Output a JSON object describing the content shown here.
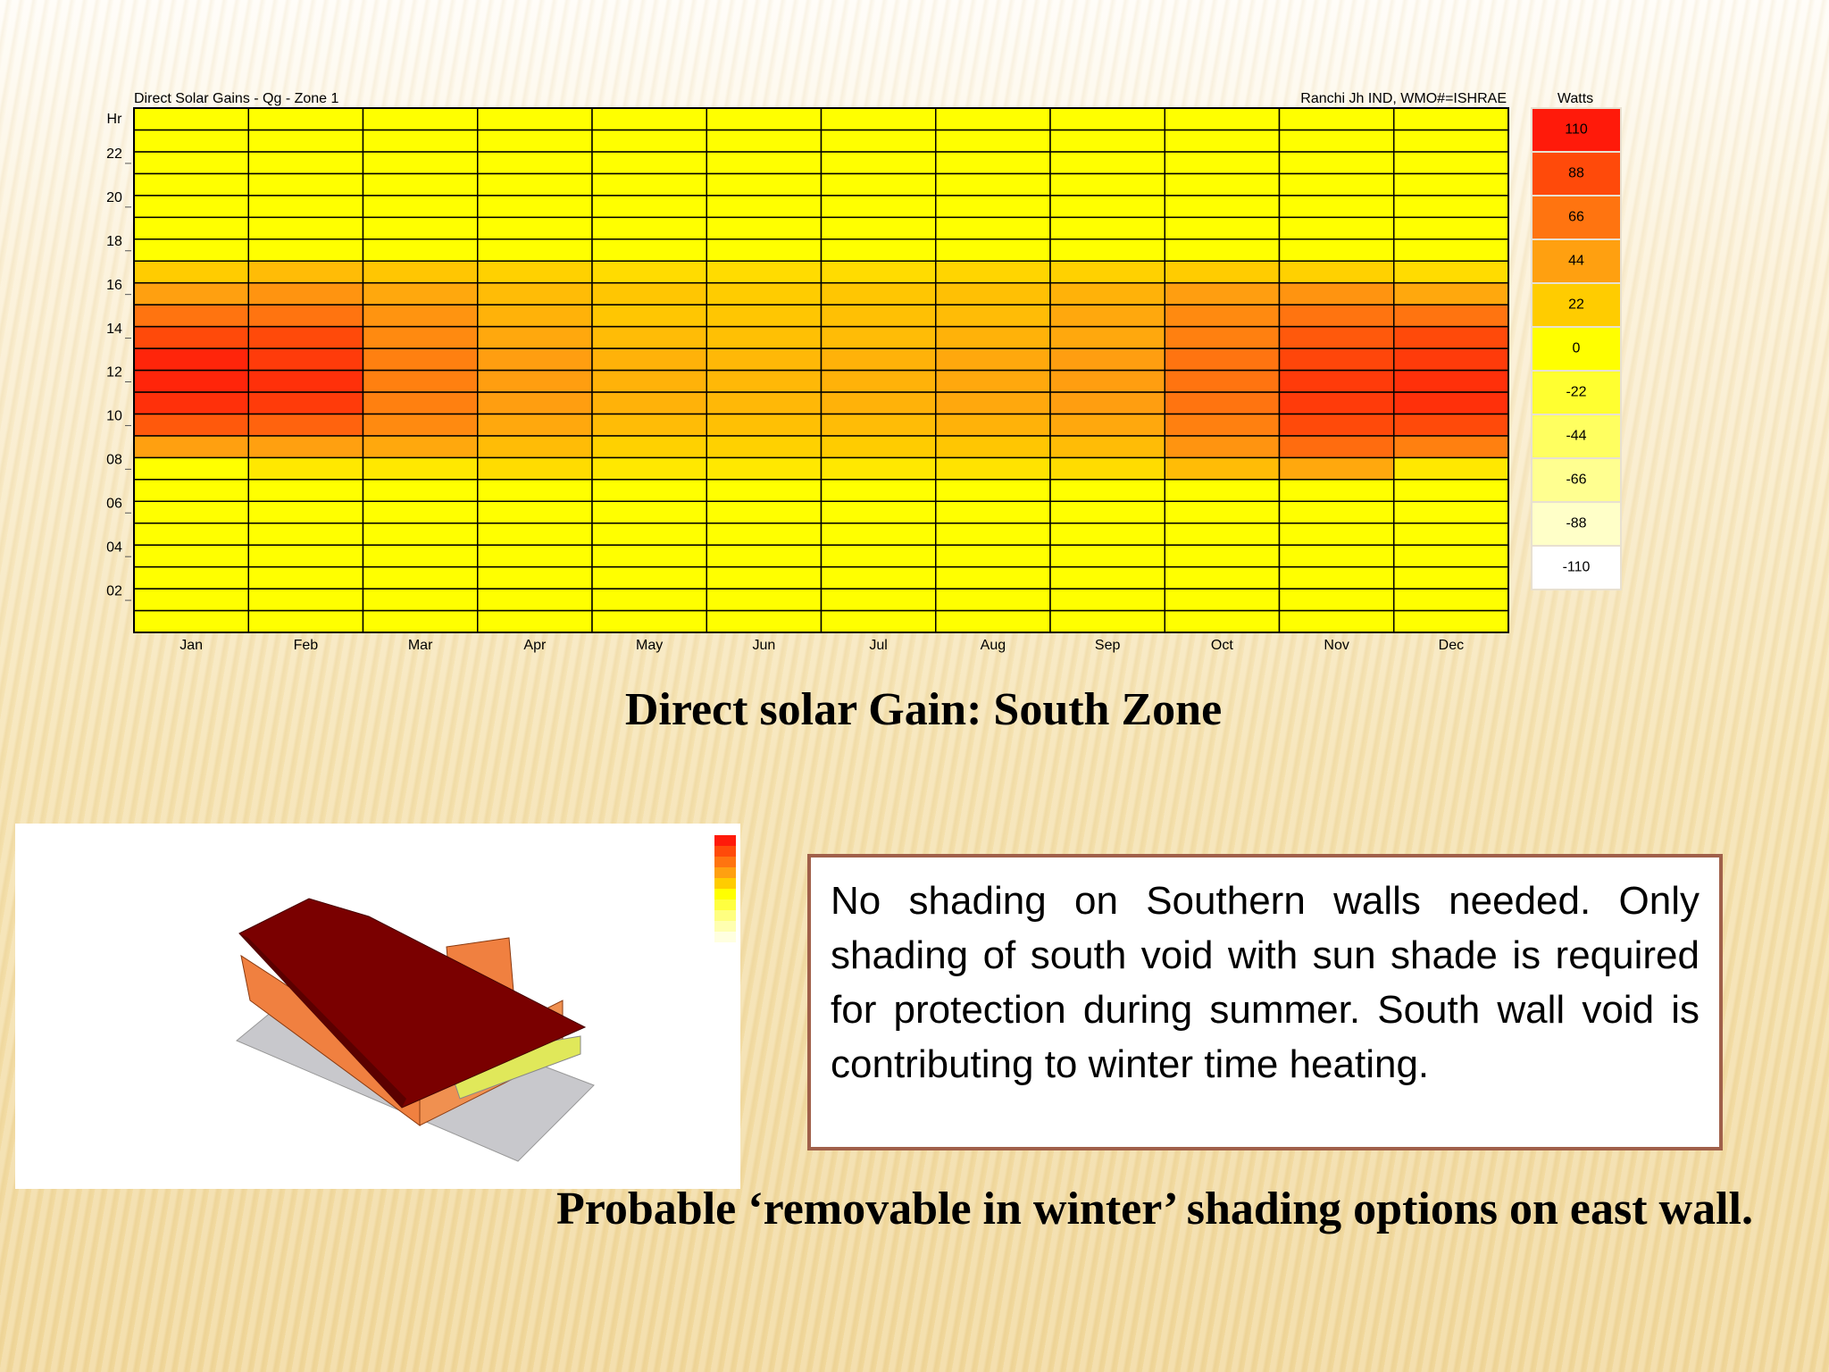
{
  "chart_data": {
    "type": "heatmap",
    "title": "Direct Solar Gains - Qg - Zone 1",
    "subtitle": "Ranchi Jh IND, WMO#=ISHRAE",
    "y_label": "Hr",
    "colorbar_title": "Watts",
    "categories": [
      "Jan",
      "Feb",
      "Mar",
      "Apr",
      "May",
      "Jun",
      "Jul",
      "Aug",
      "Sep",
      "Oct",
      "Nov",
      "Dec"
    ],
    "values": [
      [
        0,
        0,
        0,
        0,
        0,
        0,
        0,
        0,
        44,
        80,
        100,
        105,
        105,
        88,
        66,
        44,
        22,
        0,
        0,
        0,
        0,
        0,
        0,
        0
      ],
      [
        0,
        0,
        0,
        0,
        0,
        0,
        0,
        10,
        44,
        75,
        95,
        100,
        95,
        88,
        66,
        50,
        30,
        0,
        0,
        0,
        0,
        0,
        0,
        0
      ],
      [
        0,
        0,
        0,
        0,
        0,
        0,
        0,
        10,
        40,
        55,
        60,
        60,
        60,
        55,
        50,
        40,
        25,
        0,
        0,
        0,
        0,
        0,
        0,
        0
      ],
      [
        0,
        0,
        0,
        0,
        0,
        0,
        0,
        15,
        30,
        40,
        45,
        45,
        45,
        40,
        35,
        30,
        20,
        0,
        0,
        0,
        0,
        0,
        0,
        0
      ],
      [
        0,
        0,
        0,
        0,
        0,
        0,
        0,
        10,
        20,
        30,
        35,
        35,
        35,
        30,
        25,
        25,
        15,
        0,
        0,
        0,
        0,
        0,
        0,
        0
      ],
      [
        0,
        0,
        0,
        0,
        0,
        0,
        0,
        10,
        20,
        28,
        32,
        32,
        32,
        28,
        25,
        22,
        15,
        0,
        0,
        0,
        0,
        0,
        0,
        0
      ],
      [
        0,
        0,
        0,
        0,
        0,
        0,
        0,
        10,
        22,
        30,
        35,
        35,
        35,
        30,
        28,
        25,
        15,
        0,
        0,
        0,
        0,
        0,
        0,
        0
      ],
      [
        0,
        0,
        0,
        0,
        0,
        0,
        0,
        12,
        25,
        35,
        40,
        40,
        40,
        35,
        30,
        28,
        18,
        0,
        0,
        0,
        0,
        0,
        0,
        0
      ],
      [
        0,
        0,
        0,
        0,
        0,
        0,
        0,
        15,
        30,
        40,
        45,
        45,
        45,
        40,
        40,
        35,
        20,
        0,
        0,
        0,
        0,
        0,
        0,
        0
      ],
      [
        0,
        0,
        0,
        0,
        0,
        0,
        0,
        30,
        50,
        60,
        66,
        66,
        66,
        60,
        55,
        45,
        22,
        0,
        0,
        0,
        0,
        0,
        0,
        0
      ],
      [
        0,
        0,
        0,
        0,
        0,
        0,
        0,
        40,
        70,
        88,
        95,
        95,
        90,
        80,
        66,
        50,
        20,
        0,
        0,
        0,
        0,
        0,
        0,
        0
      ],
      [
        0,
        0,
        0,
        0,
        0,
        0,
        0,
        10,
        60,
        88,
        100,
        100,
        95,
        88,
        66,
        40,
        15,
        0,
        0,
        0,
        0,
        0,
        0,
        0
      ]
    ],
    "ylim": [
      0,
      24
    ],
    "yticks": [
      {
        "value": 2,
        "label": "02"
      },
      {
        "value": 4,
        "label": "04"
      },
      {
        "value": 6,
        "label": "06"
      },
      {
        "value": 8,
        "label": "08"
      },
      10,
      12,
      14,
      16,
      18,
      20,
      22
    ],
    "colorbar": [
      {
        "value": 110,
        "color": "#ff1a0a"
      },
      {
        "value": 88,
        "color": "#ff4a0a"
      },
      {
        "value": 66,
        "color": "#ff7410"
      },
      {
        "value": 44,
        "color": "#ffa010"
      },
      {
        "value": 22,
        "color": "#ffcc00"
      },
      {
        "value": 0,
        "color": "#ffff00"
      },
      {
        "value": -22,
        "color": "#ffff30"
      },
      {
        "value": -44,
        "color": "#ffff60"
      },
      {
        "value": -66,
        "color": "#ffff90"
      },
      {
        "value": -88,
        "color": "#ffffc8"
      },
      {
        "value": -110,
        "color": "#ffffff"
      }
    ]
  },
  "caption": "Direct solar Gain: South Zone",
  "note": "No shading on Southern walls needed. Only shading of south void with sun shade is required for protection during summer. South wall void is contributing to winter time heating.",
  "footer": "Probable ‘removable in winter’ shading options on east wall."
}
